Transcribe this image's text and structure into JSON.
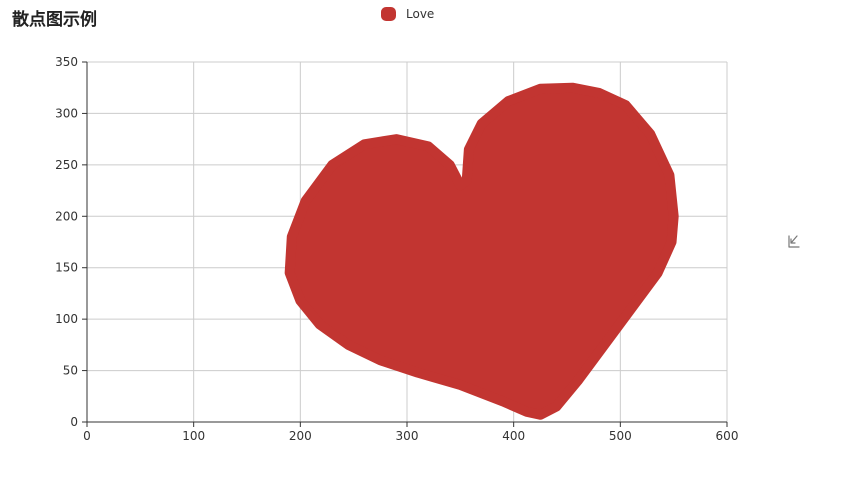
{
  "title": "散点图示例",
  "legend": {
    "items": [
      {
        "name": "Love",
        "color": "#c23531"
      }
    ]
  },
  "toolbox": {
    "icon": "download-icon"
  },
  "chart_data": {
    "type": "scatter",
    "title": "散点图示例",
    "xlim": [
      0,
      600
    ],
    "ylim": [
      0,
      350
    ],
    "x_ticks": [
      0,
      100,
      200,
      300,
      400,
      500,
      600
    ],
    "y_ticks": [
      0,
      50,
      100,
      150,
      200,
      250,
      300,
      350
    ],
    "grid": true,
    "legend_position": "top-center",
    "series": [
      {
        "name": "Love",
        "color": "#c23531",
        "boundary": [
          [
            425,
            7
          ],
          [
            440,
            15
          ],
          [
            460,
            40
          ],
          [
            485,
            75
          ],
          [
            510,
            110
          ],
          [
            535,
            145
          ],
          [
            548,
            175
          ],
          [
            550,
            200
          ],
          [
            546,
            240
          ],
          [
            528,
            280
          ],
          [
            505,
            308
          ],
          [
            480,
            320
          ],
          [
            455,
            325
          ],
          [
            425,
            324
          ],
          [
            395,
            312
          ],
          [
            370,
            290
          ],
          [
            358,
            265
          ],
          [
            356,
            235
          ],
          [
            350,
            230
          ],
          [
            340,
            250
          ],
          [
            320,
            268
          ],
          [
            290,
            275
          ],
          [
            260,
            270
          ],
          [
            230,
            250
          ],
          [
            205,
            215
          ],
          [
            192,
            180
          ],
          [
            190,
            145
          ],
          [
            200,
            118
          ],
          [
            218,
            95
          ],
          [
            245,
            75
          ],
          [
            275,
            60
          ],
          [
            310,
            48
          ],
          [
            350,
            36
          ],
          [
            390,
            20
          ],
          [
            412,
            10
          ]
        ]
      }
    ]
  }
}
